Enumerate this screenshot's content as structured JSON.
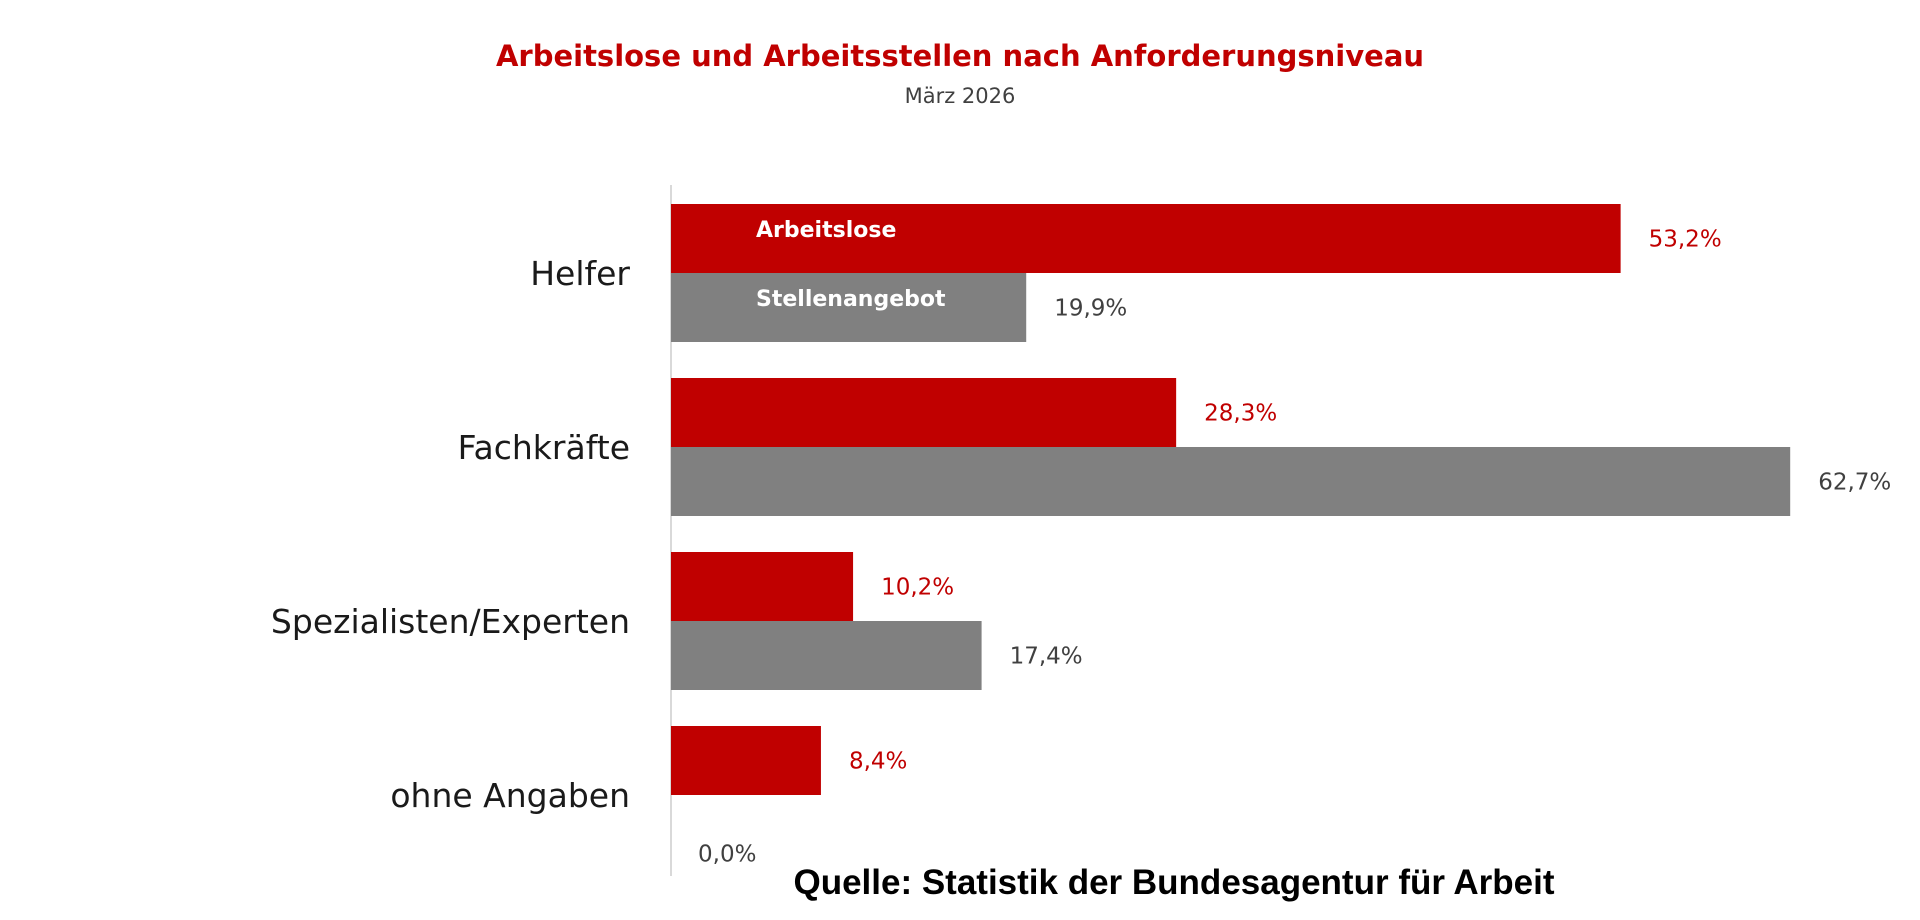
{
  "chart_data": {
    "type": "bar",
    "orientation": "horizontal",
    "title": "Arbeitslose und Arbeitsstellen nach Anforderungsniveau",
    "subtitle": "März 2026",
    "categories": [
      "Helfer",
      "Fachkräfte",
      "Spezialisten/Experten",
      "ohne Angaben"
    ],
    "series": [
      {
        "name": "Arbeitslose",
        "values": [
          53.2,
          28.3,
          10.2,
          8.4
        ],
        "labels": [
          "53,2%",
          "28,3%",
          "10,2%",
          "8,4%"
        ],
        "color": "#c00000",
        "label_color": "#c00000"
      },
      {
        "name": "Stellenangebot",
        "values": [
          19.9,
          62.7,
          17.4,
          0.0
        ],
        "labels": [
          "19,9%",
          "62,7%",
          "17,4%",
          "0,0%"
        ],
        "color": "#808080",
        "label_color": "#404040"
      }
    ],
    "xlim": [
      0,
      64
    ],
    "grid": false,
    "legend": "inside-bars",
    "source": "Quelle: Statistik der Bundesagentur für Arbeit"
  }
}
